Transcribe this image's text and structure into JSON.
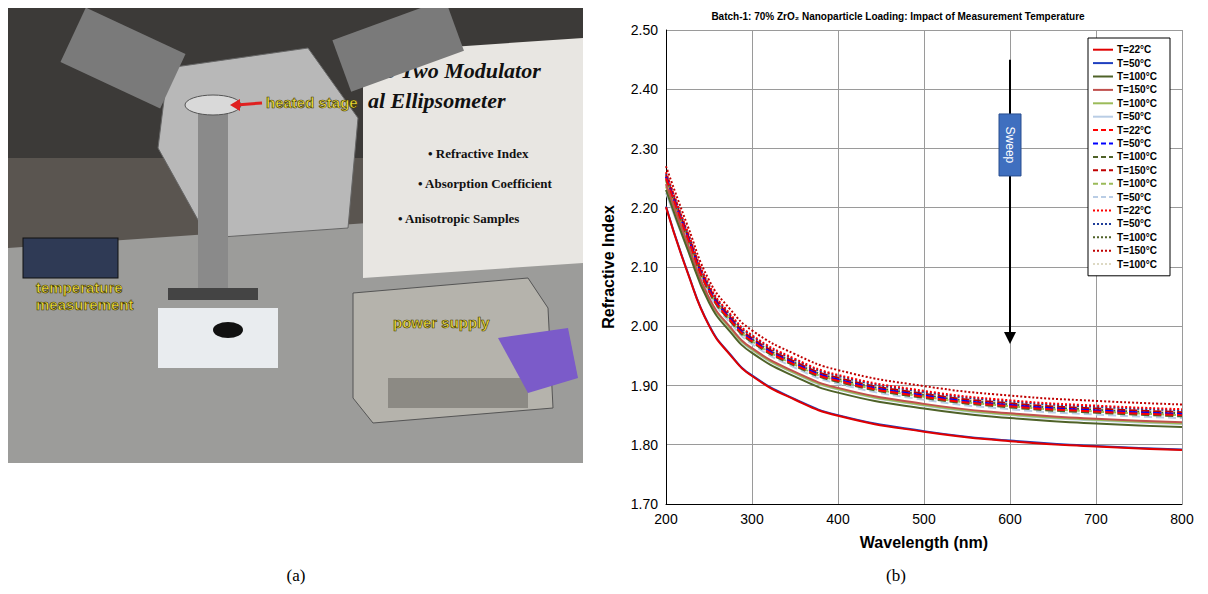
{
  "chart_data": {
    "type": "line",
    "title": "Batch-1: 70% ZrO₂ Nanoparticle Loading: Impact of Measurement Temperature",
    "x_label": "Wavelength (nm)",
    "y_label": "Refractive Index",
    "x": [
      200,
      225,
      250,
      275,
      300,
      350,
      400,
      500,
      600,
      700,
      800
    ],
    "xlim": [
      200,
      800
    ],
    "xticks": [
      200,
      300,
      400,
      500,
      600,
      700,
      800
    ],
    "ylim": [
      1.7,
      2.5
    ],
    "yticks": [
      {
        "value": 1.7,
        "label": "1.70"
      },
      {
        "value": 1.8,
        "label": "1.80"
      },
      {
        "value": 1.9,
        "label": "1.90"
      },
      {
        "value": 2.0,
        "label": "2.00"
      },
      {
        "value": 2.1,
        "label": "2.10"
      },
      {
        "value": 2.2,
        "label": "2.20"
      },
      {
        "value": 2.3,
        "label": "2.30"
      },
      {
        "value": 2.4,
        "label": "2.40"
      },
      {
        "value": 2.5,
        "label": "2.50"
      }
    ],
    "grid": true,
    "legend": "upper right",
    "annotations": [
      {
        "text": "Sweep",
        "x": 600,
        "y_start": 2.45,
        "y_end": 1.97
      }
    ],
    "series": [
      {
        "name": "T=22°C",
        "color": "#e00000",
        "line_style": "solid",
        "values": [
          2.201,
          2.091,
          2.001,
          1.951,
          1.916,
          1.876,
          1.849,
          1.822,
          1.806,
          1.797,
          1.791
        ]
      },
      {
        "name": "T=50°C",
        "color": "#1f3fbf",
        "line_style": "solid",
        "values": [
          2.202,
          2.092,
          2.002,
          1.952,
          1.917,
          1.877,
          1.85,
          1.823,
          1.807,
          1.798,
          1.792
        ]
      },
      {
        "name": "T=100°C",
        "color": "#4f6228",
        "line_style": "solid",
        "values": [
          2.23,
          2.13,
          2.04,
          1.99,
          1.955,
          1.915,
          1.888,
          1.861,
          1.845,
          1.836,
          1.83
        ]
      },
      {
        "name": "T=150°C",
        "color": "#c0504d",
        "line_style": "solid",
        "values": [
          2.24,
          2.14,
          2.048,
          1.998,
          1.963,
          1.923,
          1.896,
          1.869,
          1.853,
          1.844,
          1.838
        ]
      },
      {
        "name": "T=100°C",
        "color": "#9bbb59",
        "line_style": "solid",
        "values": [
          2.236,
          2.136,
          2.046,
          1.996,
          1.961,
          1.921,
          1.894,
          1.867,
          1.851,
          1.842,
          1.836
        ]
      },
      {
        "name": "T=50°C",
        "color": "#b9cde5",
        "line_style": "solid",
        "values": [
          2.225,
          2.13,
          2.045,
          1.995,
          1.96,
          1.92,
          1.893,
          1.866,
          1.85,
          1.841,
          1.835
        ]
      },
      {
        "name": "T=22°C",
        "color": "#ff0000",
        "line_style": "dashed",
        "values": [
          2.25,
          2.15,
          2.06,
          2.01,
          1.975,
          1.935,
          1.908,
          1.881,
          1.865,
          1.856,
          1.85
        ]
      },
      {
        "name": "T=50°C",
        "color": "#0000ff",
        "line_style": "dashed",
        "values": [
          2.252,
          2.152,
          2.062,
          2.012,
          1.977,
          1.937,
          1.91,
          1.883,
          1.867,
          1.858,
          1.852
        ]
      },
      {
        "name": "T=100°C",
        "color": "#4f6228",
        "line_style": "dashed",
        "values": [
          2.248,
          2.148,
          2.058,
          2.008,
          1.973,
          1.933,
          1.906,
          1.879,
          1.863,
          1.854,
          1.848
        ]
      },
      {
        "name": "T=150°C",
        "color": "#c00000",
        "line_style": "dashed",
        "values": [
          2.255,
          2.155,
          2.065,
          2.015,
          1.98,
          1.94,
          1.913,
          1.886,
          1.87,
          1.861,
          1.855
        ]
      },
      {
        "name": "T=100°C",
        "color": "#9bbb59",
        "line_style": "dashed",
        "values": [
          2.245,
          2.148,
          2.06,
          2.01,
          1.975,
          1.935,
          1.908,
          1.881,
          1.865,
          1.856,
          1.85
        ]
      },
      {
        "name": "T=50°C",
        "color": "#b9cde5",
        "line_style": "dashed",
        "values": [
          2.24,
          2.14,
          2.055,
          2.005,
          1.97,
          1.93,
          1.903,
          1.876,
          1.86,
          1.851,
          1.845
        ]
      },
      {
        "name": "T=22°C",
        "color": "#ff0000",
        "line_style": "dotted",
        "values": [
          2.26,
          2.16,
          2.07,
          2.02,
          1.985,
          1.945,
          1.918,
          1.891,
          1.875,
          1.866,
          1.86
        ]
      },
      {
        "name": "T=50°C",
        "color": "#1f3d99",
        "line_style": "dotted",
        "values": [
          2.258,
          2.158,
          2.068,
          2.018,
          1.983,
          1.943,
          1.916,
          1.889,
          1.873,
          1.864,
          1.858
        ]
      },
      {
        "name": "T=100°C",
        "color": "#4f6228",
        "line_style": "dotted",
        "values": [
          2.253,
          2.153,
          2.063,
          2.013,
          1.978,
          1.938,
          1.911,
          1.884,
          1.868,
          1.859,
          1.853
        ]
      },
      {
        "name": "T=150°C",
        "color": "#c00000",
        "line_style": "dotted",
        "values": [
          2.27,
          2.17,
          2.078,
          2.028,
          1.993,
          1.953,
          1.926,
          1.899,
          1.883,
          1.874,
          1.868
        ]
      },
      {
        "name": "T=100°C",
        "color": "#ddd9c3",
        "line_style": "dotted",
        "values": [
          2.256,
          2.156,
          2.066,
          2.016,
          1.981,
          1.941,
          1.914,
          1.887,
          1.871,
          1.862,
          1.856
        ]
      }
    ]
  },
  "photo": {
    "labels": {
      "stage": "heated stage",
      "temperature": "temperature measurement",
      "power": "power supply"
    },
    "poster": [
      "pic Two Modulator",
      "al Ellipsometer",
      "• Refractive Index",
      "• Absorption Coefficient",
      "• Anisotropic Samples"
    ]
  },
  "captions": [
    "(a)",
    "(b)"
  ]
}
